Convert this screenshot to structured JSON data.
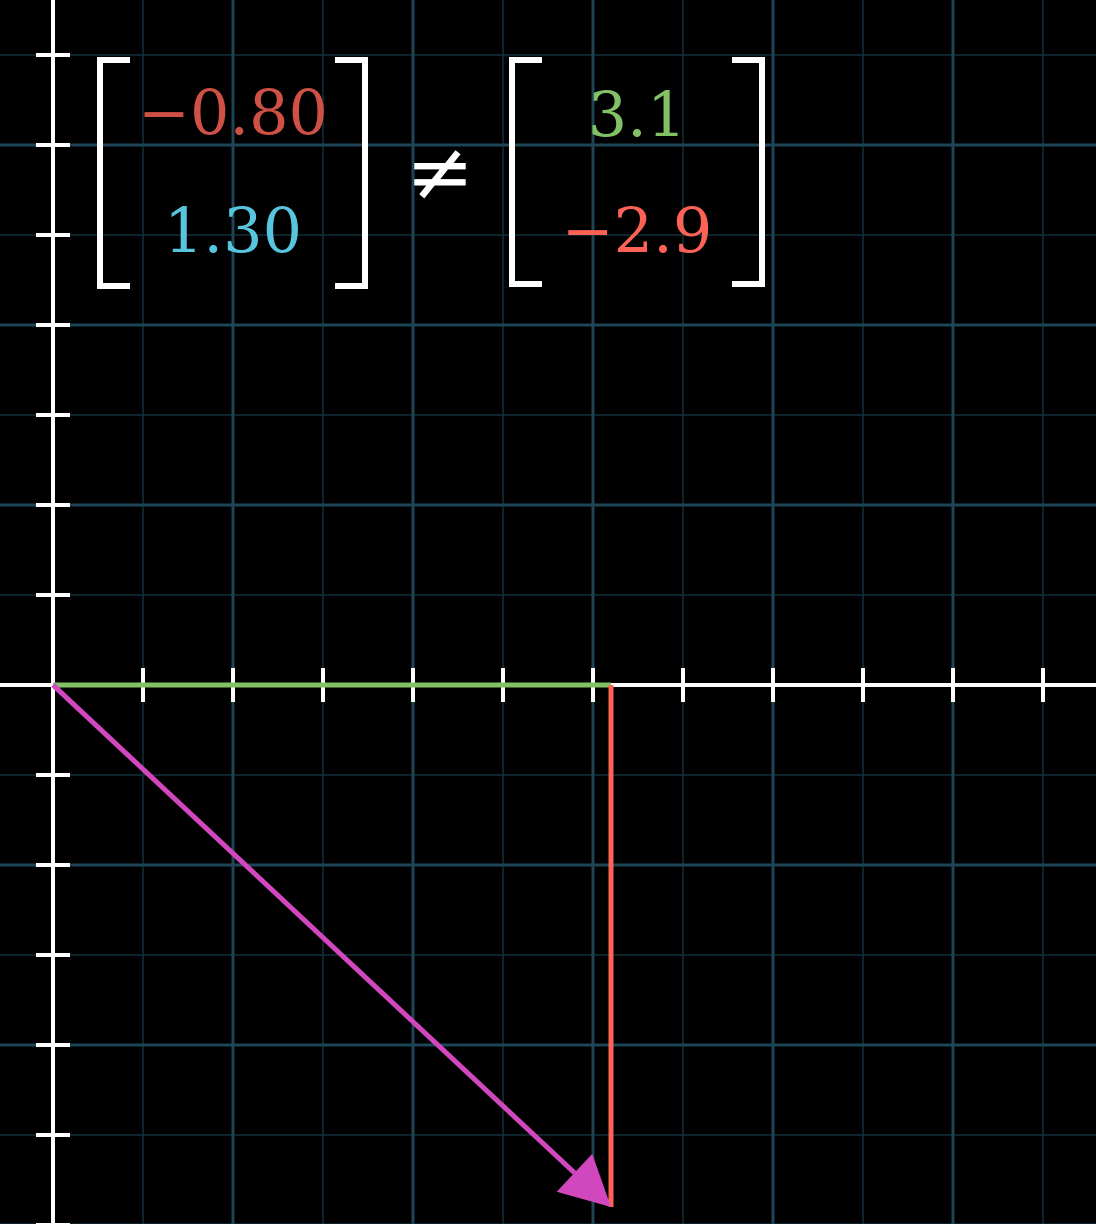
{
  "plane": {
    "origin": [
      0,
      0
    ],
    "x_range": [
      0,
      11
    ],
    "y_range": [
      -6,
      7.5
    ],
    "major_grid_step": 2,
    "minor_grid_step": 1,
    "grid_color": "#1d4556",
    "minor_grid_color": "#12303c",
    "axis_color": "#ffffff"
  },
  "vectors": {
    "x_component": {
      "from": [
        0,
        0
      ],
      "to": [
        6.2,
        0
      ],
      "color": "#83c167"
    },
    "y_component": {
      "from": [
        6.2,
        0
      ],
      "to": [
        6.2,
        -5.8
      ],
      "color": "#fc6255"
    },
    "sum_vector": {
      "from": [
        0,
        0
      ],
      "to": [
        6.2,
        -5.8
      ],
      "color": "#d147bd"
    }
  },
  "equation": {
    "left": {
      "top": "−0.80",
      "bottom": "1.30",
      "top_color": "#cf5044",
      "bottom_color": "#58c4dd"
    },
    "relation": "≠",
    "right": {
      "top": "3.1",
      "bottom": "−2.9",
      "top_color": "#83c167",
      "bottom_color": "#fc6255"
    }
  }
}
